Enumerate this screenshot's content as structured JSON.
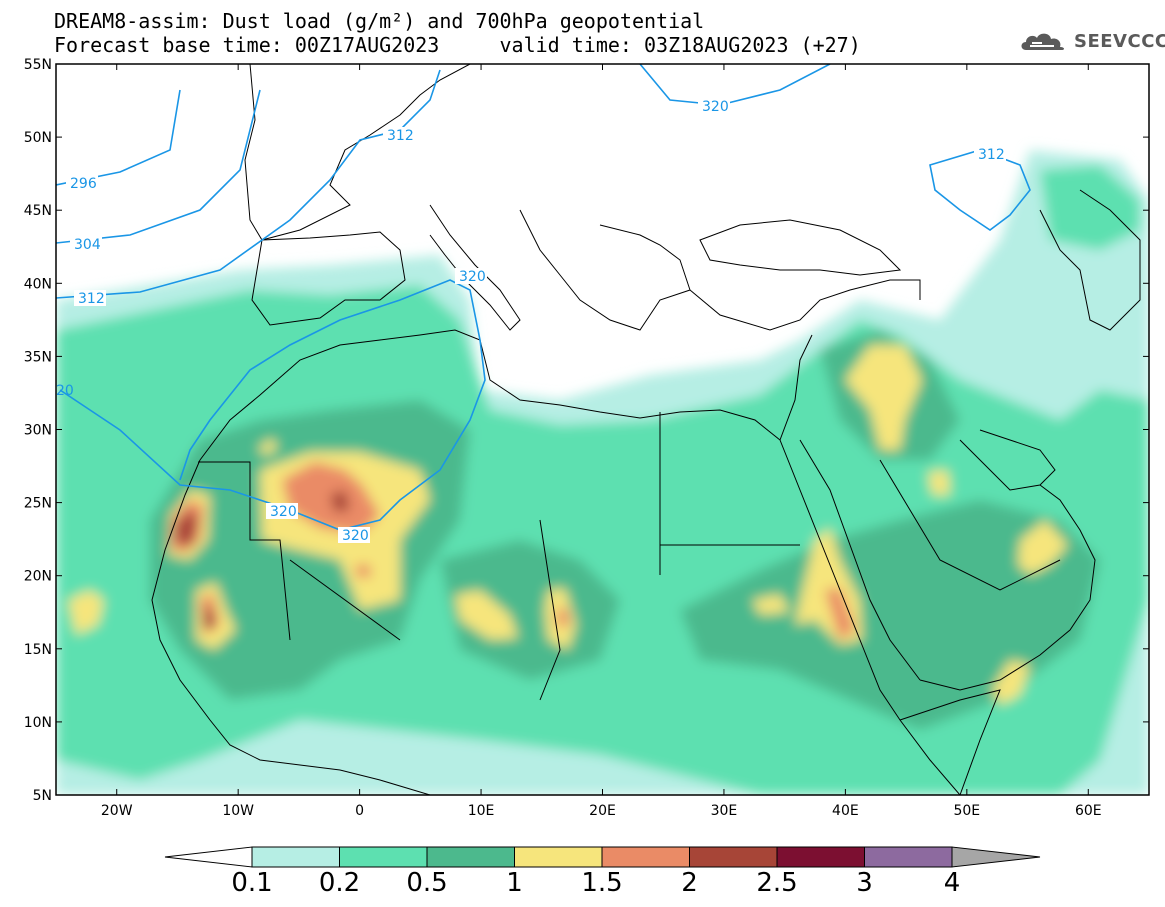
{
  "title": {
    "line1": "DREAM8-assim: Dust load (g/m²) and 700hPa geopotential",
    "line2": "Forecast base time: 00Z17AUG2023     valid time: 03Z18AUG2023 (+27)"
  },
  "logo": {
    "text": "SEEVCCC",
    "icon": "cloud-logo-icon"
  },
  "map": {
    "lon_range": [
      -25,
      65
    ],
    "lat_range": [
      5,
      55
    ],
    "lon_ticks": [
      "20W",
      "10W",
      "0",
      "10E",
      "20E",
      "30E",
      "40E",
      "50E",
      "60E"
    ],
    "lat_ticks": [
      "55N",
      "50N",
      "45N",
      "40N",
      "35N",
      "30N",
      "25N",
      "20N",
      "15N",
      "10N",
      "5N"
    ],
    "contour_labels": [
      "296",
      "304",
      "312",
      "312",
      "312",
      "320",
      "320",
      "320",
      "320",
      "20"
    ],
    "colors": {
      "ocean_land": "#ffffff",
      "border": "#000000",
      "contour": "#1a96e6"
    }
  },
  "colorbar": {
    "labels": [
      "0.1",
      "0.2",
      "0.5",
      "1",
      "1.5",
      "2",
      "2.5",
      "3",
      "4"
    ],
    "colors": [
      "#b6eee4",
      "#5de0b0",
      "#4cb98d",
      "#f6e57c",
      "#ea8b66",
      "#a74537",
      "#7c0f31",
      "#8d6a9f"
    ],
    "under_color": "#ffffff",
    "over_color": "#a6a6a6"
  }
}
